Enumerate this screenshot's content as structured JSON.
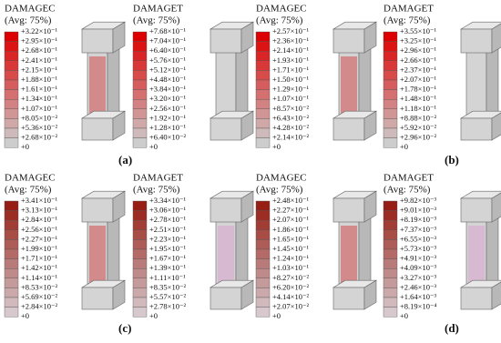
{
  "panels": [
    {
      "title": "DAMAGEC",
      "subtitle": "(Avg: 75%)",
      "labels": [
        "+3.22×10⁻¹",
        "+2.95×10⁻¹",
        "+2.68×10⁻¹",
        "+2.41×10⁻¹",
        "+2.15×10⁻¹",
        "+1.88×10⁻¹",
        "+1.61×10⁻¹",
        "+1.34×10⁻¹",
        "+1.07×10⁻¹",
        "+8.05×10⁻²",
        "+5.36×10⁻²",
        "+2.68×10⁻²",
        "+0"
      ]
    },
    {
      "title": "DAMAGET",
      "subtitle": "(Avg: 75%)",
      "labels": [
        "+7.68×10⁻¹",
        "+7.04×10⁻¹",
        "+6.40×10⁻¹",
        "+5.76×10⁻¹",
        "+5.12×10⁻¹",
        "+4.48×10⁻¹",
        "+3.84×10⁻¹",
        "+3.20×10⁻¹",
        "+2.56×10⁻¹",
        "+1.92×10⁻¹",
        "+1.28×10⁻¹",
        "+6.40×10⁻²",
        "+0"
      ]
    },
    {
      "title": "DAMAGEC",
      "subtitle": "(Avg: 75%)",
      "labels": [
        "+2.57×10⁻¹",
        "+2.36×10⁻¹",
        "+2.14×10⁻¹",
        "+1.93×10⁻¹",
        "+1.71×10⁻¹",
        "+1.50×10⁻¹",
        "+1.29×10⁻¹",
        "+1.07×10⁻¹",
        "+8.57×10⁻²",
        "+6.43×10⁻²",
        "+4.28×10⁻²",
        "+2.14×10⁻²",
        "+0"
      ]
    },
    {
      "title": "DAMAGET",
      "subtitle": "(Avg: 75%)",
      "labels": [
        "+3.55×10⁻¹",
        "+3.25×10⁻¹",
        "+2.96×10⁻¹",
        "+2.66×10⁻¹",
        "+2.37×10⁻¹",
        "+2.07×10⁻¹",
        "+1.78×10⁻¹",
        "+1.48×10⁻¹",
        "+1.18×10⁻¹",
        "+8.88×10⁻²",
        "+5.92×10⁻²",
        "+2.96×10⁻²",
        "+0"
      ]
    },
    {
      "title": "DAMAGEC",
      "subtitle": "(Avg: 75%)",
      "labels": [
        "+3.41×10⁻¹",
        "+3.13×10⁻¹",
        "+2.84×10⁻¹",
        "+2.56×10⁻¹",
        "+2.27×10⁻¹",
        "+1.99×10⁻¹",
        "+1.71×10⁻¹",
        "+1.42×10⁻¹",
        "+1.14×10⁻¹",
        "+8.53×10⁻²",
        "+5.69×10⁻²",
        "+2.84×10⁻²",
        "+0"
      ]
    },
    {
      "title": "DAMAGET",
      "subtitle": "(Avg: 75%)",
      "labels": [
        "+3.34×10⁻¹",
        "+3.06×10⁻¹",
        "+2.78×10⁻¹",
        "+2.51×10⁻¹",
        "+2.23×10⁻¹",
        "+1.95×10⁻¹",
        "+1.67×10⁻¹",
        "+1.39×10⁻¹",
        "+1.11×10⁻¹",
        "+8.35×10⁻²",
        "+5.57×10⁻²",
        "+2.78×10⁻²",
        "+0"
      ]
    },
    {
      "title": "DAMAGEC",
      "subtitle": "(Avg: 75%)",
      "labels": [
        "+2.48×10⁻¹",
        "+2.27×10⁻¹",
        "+2.07×10⁻¹",
        "+1.86×10⁻¹",
        "+1.65×10⁻¹",
        "+1.45×10⁻¹",
        "+1.24×10⁻¹",
        "+1.03×10⁻¹",
        "+8.27×10⁻²",
        "+6.20×10⁻²",
        "+4.14×10⁻²",
        "+2.07×10⁻²",
        "+0"
      ]
    },
    {
      "title": "DAMAGET",
      "subtitle": "(Avg: 75%)",
      "labels": [
        "+9.82×10⁻³",
        "+9.01×10⁻³",
        "+8.19×10⁻³",
        "+7.37×10⁻³",
        "+6.55×10⁻³",
        "+5.73×10⁻³",
        "+4.91×10⁻³",
        "+4.09×10⁻³",
        "+3.27×10⁻³",
        "+2.46×10⁻³",
        "+1.64×10⁻³",
        "+8.19×10⁻⁴",
        "+0"
      ]
    }
  ],
  "captions": [
    "(a)",
    "(b)",
    "(c)",
    "(d)"
  ]
}
